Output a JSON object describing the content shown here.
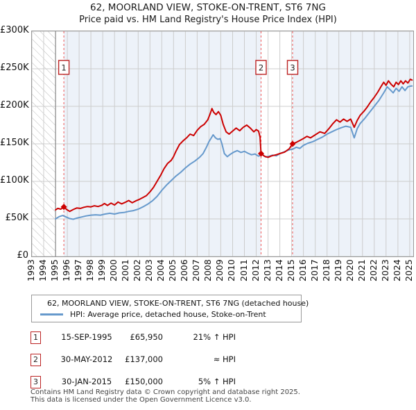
{
  "title": "62, MOORLAND VIEW, STOKE-ON-TRENT, ST6 7NG",
  "subtitle": "Price paid vs. HM Land Registry's House Price Index (HPI)",
  "colors": {
    "property_line": "#cc0000",
    "hpi_line": "#6699cc",
    "sale_dashed_line": "#f05555",
    "owned_band": "#edf2f9",
    "grid": "#cccccc",
    "hatch": "#bbbbbb",
    "marker_box_border": "#bb2222",
    "plot_border": "#999999"
  },
  "chart_data": {
    "type": "line",
    "title": "62, MOORLAND VIEW, STOKE-ON-TRENT, ST6 7NG",
    "subtitle": "Price paid vs. HM Land Registry's House Price Index (HPI)",
    "x_axis": {
      "min": 1993.0,
      "max": 2025.3,
      "tick_years": [
        1993,
        1994,
        1995,
        1996,
        1997,
        1998,
        1999,
        2000,
        2001,
        2002,
        2003,
        2004,
        2005,
        2006,
        2007,
        2008,
        2009,
        2010,
        2011,
        2012,
        2013,
        2014,
        2015,
        2016,
        2017,
        2018,
        2019,
        2020,
        2021,
        2022,
        2023,
        2024,
        2025
      ]
    },
    "y_axis": {
      "min": 0,
      "max": 300000,
      "ticks": [
        {
          "value": 300000,
          "label": "£300K"
        },
        {
          "value": 250000,
          "label": "£250K"
        },
        {
          "value": 200000,
          "label": "£200K"
        },
        {
          "value": 150000,
          "label": "£150K"
        },
        {
          "value": 100000,
          "label": "£100K"
        },
        {
          "value": 50000,
          "label": "£50K"
        },
        {
          "value": 0,
          "label": "£0"
        }
      ]
    },
    "grid": true,
    "legend_position": "below",
    "hatch_region": {
      "from": 1993.0,
      "to": 1995.0
    },
    "hpi_start_line": 1995.0,
    "owned_bands": [
      {
        "from": 1995.71,
        "to": 2012.41
      },
      {
        "from": 2015.08,
        "to": 2025.3
      }
    ],
    "series": [
      {
        "name": "62, MOORLAND VIEW, STOKE-ON-TRENT, ST6 7NG (detached house)",
        "color": "#cc0000",
        "points": [
          [
            1995.0,
            62000
          ],
          [
            1995.2,
            64000
          ],
          [
            1995.45,
            63000
          ],
          [
            1995.71,
            65950
          ],
          [
            1995.95,
            62500
          ],
          [
            1996.2,
            60000
          ],
          [
            1996.5,
            62500
          ],
          [
            1996.8,
            64500
          ],
          [
            1997.1,
            64000
          ],
          [
            1997.4,
            65500
          ],
          [
            1997.7,
            66500
          ],
          [
            1998.0,
            66000
          ],
          [
            1998.3,
            67500
          ],
          [
            1998.6,
            66500
          ],
          [
            1998.9,
            68000
          ],
          [
            1999.15,
            70500
          ],
          [
            1999.4,
            68000
          ],
          [
            1999.7,
            71000
          ],
          [
            2000.0,
            68500
          ],
          [
            2000.3,
            72500
          ],
          [
            2000.6,
            70000
          ],
          [
            2000.9,
            72000
          ],
          [
            2001.2,
            74500
          ],
          [
            2001.5,
            71500
          ],
          [
            2001.8,
            74000
          ],
          [
            2002.1,
            76000
          ],
          [
            2002.4,
            78500
          ],
          [
            2002.7,
            81000
          ],
          [
            2003.0,
            86000
          ],
          [
            2003.3,
            92000
          ],
          [
            2003.6,
            100000
          ],
          [
            2003.9,
            108000
          ],
          [
            2004.2,
            117000
          ],
          [
            2004.5,
            124000
          ],
          [
            2004.8,
            128000
          ],
          [
            2005.0,
            133000
          ],
          [
            2005.2,
            140000
          ],
          [
            2005.5,
            149000
          ],
          [
            2005.8,
            154000
          ],
          [
            2006.1,
            158000
          ],
          [
            2006.4,
            163000
          ],
          [
            2006.7,
            161000
          ],
          [
            2007.0,
            168000
          ],
          [
            2007.3,
            173000
          ],
          [
            2007.6,
            176000
          ],
          [
            2007.9,
            182000
          ],
          [
            2008.1,
            190000
          ],
          [
            2008.25,
            197000
          ],
          [
            2008.4,
            192000
          ],
          [
            2008.6,
            189000
          ],
          [
            2008.8,
            193000
          ],
          [
            2009.0,
            188000
          ],
          [
            2009.2,
            176000
          ],
          [
            2009.45,
            166000
          ],
          [
            2009.7,
            163000
          ],
          [
            2010.0,
            167000
          ],
          [
            2010.3,
            171000
          ],
          [
            2010.6,
            167500
          ],
          [
            2010.9,
            172000
          ],
          [
            2011.2,
            175000
          ],
          [
            2011.5,
            171000
          ],
          [
            2011.8,
            166000
          ],
          [
            2012.0,
            169000
          ],
          [
            2012.2,
            167000
          ],
          [
            2012.33,
            159000
          ],
          [
            2012.41,
            137000
          ],
          [
            2012.7,
            133500
          ],
          [
            2013.0,
            132000
          ],
          [
            2013.3,
            134000
          ],
          [
            2013.7,
            135500
          ],
          [
            2014.0,
            137000
          ],
          [
            2014.4,
            139000
          ],
          [
            2014.8,
            143500
          ],
          [
            2015.08,
            150000
          ],
          [
            2015.4,
            152000
          ],
          [
            2015.7,
            154500
          ],
          [
            2016.0,
            157000
          ],
          [
            2016.3,
            160000
          ],
          [
            2016.6,
            158000
          ],
          [
            2017.0,
            162000
          ],
          [
            2017.4,
            166000
          ],
          [
            2017.8,
            164000
          ],
          [
            2018.2,
            171000
          ],
          [
            2018.5,
            177000
          ],
          [
            2018.8,
            182000
          ],
          [
            2019.1,
            179000
          ],
          [
            2019.4,
            183000
          ],
          [
            2019.7,
            180000
          ],
          [
            2020.0,
            183000
          ],
          [
            2020.3,
            172000
          ],
          [
            2020.55,
            181000
          ],
          [
            2020.8,
            188000
          ],
          [
            2021.1,
            193000
          ],
          [
            2021.4,
            199000
          ],
          [
            2021.7,
            206000
          ],
          [
            2022.0,
            212000
          ],
          [
            2022.3,
            219000
          ],
          [
            2022.6,
            227000
          ],
          [
            2022.8,
            232000
          ],
          [
            2023.0,
            228000
          ],
          [
            2023.2,
            234000
          ],
          [
            2023.45,
            229000
          ],
          [
            2023.65,
            226000
          ],
          [
            2023.85,
            232000
          ],
          [
            2024.05,
            229000
          ],
          [
            2024.25,
            234000
          ],
          [
            2024.45,
            230000
          ],
          [
            2024.65,
            234000
          ],
          [
            2024.85,
            231000
          ],
          [
            2025.05,
            236000
          ],
          [
            2025.2,
            235000
          ]
        ]
      },
      {
        "name": "HPI: Average price, detached house, Stoke-on-Trent",
        "color": "#6699cc",
        "points": [
          [
            1995.0,
            50000
          ],
          [
            1995.3,
            53000
          ],
          [
            1995.6,
            54500
          ],
          [
            1995.9,
            52500
          ],
          [
            1996.2,
            50500
          ],
          [
            1996.5,
            49500
          ],
          [
            1996.8,
            51000
          ],
          [
            1997.2,
            52500
          ],
          [
            1997.6,
            54000
          ],
          [
            1998.0,
            55000
          ],
          [
            1998.4,
            55500
          ],
          [
            1998.8,
            55000
          ],
          [
            1999.2,
            56500
          ],
          [
            1999.6,
            57500
          ],
          [
            2000.0,
            56500
          ],
          [
            2000.4,
            58000
          ],
          [
            2000.8,
            58500
          ],
          [
            2001.2,
            60000
          ],
          [
            2001.6,
            61000
          ],
          [
            2002.0,
            63000
          ],
          [
            2002.4,
            66000
          ],
          [
            2002.8,
            69500
          ],
          [
            2003.2,
            74000
          ],
          [
            2003.6,
            80000
          ],
          [
            2004.0,
            88000
          ],
          [
            2004.4,
            95000
          ],
          [
            2004.8,
            101000
          ],
          [
            2005.2,
            107000
          ],
          [
            2005.6,
            112000
          ],
          [
            2006.0,
            118000
          ],
          [
            2006.4,
            123000
          ],
          [
            2006.8,
            127000
          ],
          [
            2007.2,
            132000
          ],
          [
            2007.5,
            137000
          ],
          [
            2007.8,
            146000
          ],
          [
            2008.0,
            153000
          ],
          [
            2008.2,
            158000
          ],
          [
            2008.35,
            162000
          ],
          [
            2008.55,
            158000
          ],
          [
            2008.75,
            156000
          ],
          [
            2008.95,
            157000
          ],
          [
            2009.1,
            150000
          ],
          [
            2009.3,
            137000
          ],
          [
            2009.55,
            133000
          ],
          [
            2009.8,
            136000
          ],
          [
            2010.1,
            139000
          ],
          [
            2010.4,
            141000
          ],
          [
            2010.7,
            138500
          ],
          [
            2011.0,
            140000
          ],
          [
            2011.3,
            137500
          ],
          [
            2011.6,
            135500
          ],
          [
            2011.9,
            136500
          ],
          [
            2012.2,
            133500
          ],
          [
            2012.5,
            136000
          ],
          [
            2012.8,
            132500
          ],
          [
            2013.1,
            133500
          ],
          [
            2013.4,
            135000
          ],
          [
            2013.7,
            134000
          ],
          [
            2014.0,
            137000
          ],
          [
            2014.4,
            139500
          ],
          [
            2014.8,
            142000
          ],
          [
            2015.1,
            143000
          ],
          [
            2015.4,
            145500
          ],
          [
            2015.7,
            144000
          ],
          [
            2016.0,
            148000
          ],
          [
            2016.4,
            151000
          ],
          [
            2016.8,
            153000
          ],
          [
            2017.2,
            156000
          ],
          [
            2017.6,
            159000
          ],
          [
            2018.0,
            163000
          ],
          [
            2018.4,
            166000
          ],
          [
            2018.8,
            169000
          ],
          [
            2019.2,
            171500
          ],
          [
            2019.6,
            173500
          ],
          [
            2020.0,
            172000
          ],
          [
            2020.3,
            158000
          ],
          [
            2020.55,
            170000
          ],
          [
            2020.8,
            177000
          ],
          [
            2021.2,
            184000
          ],
          [
            2021.6,
            192000
          ],
          [
            2022.0,
            200000
          ],
          [
            2022.4,
            208000
          ],
          [
            2022.8,
            218000
          ],
          [
            2023.1,
            226000
          ],
          [
            2023.35,
            222000
          ],
          [
            2023.6,
            218000
          ],
          [
            2023.85,
            224000
          ],
          [
            2024.1,
            220000
          ],
          [
            2024.35,
            226000
          ],
          [
            2024.6,
            221000
          ],
          [
            2024.85,
            226000
          ],
          [
            2025.1,
            227000
          ],
          [
            2025.2,
            227000
          ]
        ]
      }
    ],
    "sales": [
      {
        "label": "1",
        "year": 1995.71,
        "price": 65950
      },
      {
        "label": "2",
        "year": 2012.41,
        "price": 137000
      },
      {
        "label": "3",
        "year": 2015.08,
        "price": 150000
      }
    ]
  },
  "legend": [
    {
      "label": "62, MOORLAND VIEW, STOKE-ON-TRENT, ST6 7NG (detached house)",
      "color": "#cc0000"
    },
    {
      "label": "HPI: Average price, detached house, Stoke-on-Trent",
      "color": "#6699cc"
    }
  ],
  "transactions": [
    {
      "num": "1",
      "date": "15-SEP-1995",
      "price": "£65,950",
      "vs_hpi": "21% ↑ HPI"
    },
    {
      "num": "2",
      "date": "30-MAY-2012",
      "price": "£137,000",
      "vs_hpi": "≈ HPI"
    },
    {
      "num": "3",
      "date": "30-JAN-2015",
      "price": "£150,000",
      "vs_hpi": "5% ↑ HPI"
    }
  ],
  "footer": {
    "line1": "Contains HM Land Registry data © Crown copyright and database right 2025.",
    "line2": "This data is licensed under the Open Government Licence v3.0."
  }
}
